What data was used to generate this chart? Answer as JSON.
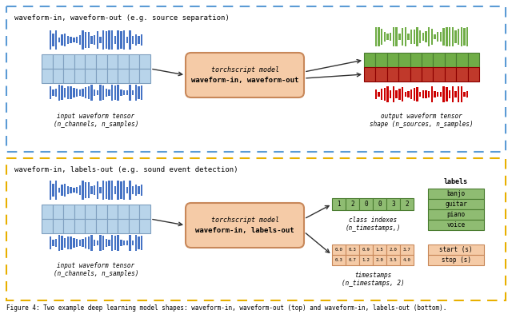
{
  "fig_width": 6.4,
  "fig_height": 3.98,
  "dpi": 100,
  "bg_color": "#ffffff",
  "top_panel": {
    "title": "waveform-in, waveform-out (e.g. source separation)",
    "box_color": "#b8d4ea",
    "box_border": "#7f9fbf",
    "panel_border": "#5b9bd5",
    "model_box_color": "#f5cba7",
    "model_box_border": "#c8885a",
    "model_text1": "torchscript model",
    "model_text2": "waveform-in, waveform-out",
    "input_label1": "input waveform tensor",
    "input_label2": "(n_channels, n_samples)",
    "output_label1": "output waveform tensor",
    "output_label2": "shape (n_sources, n_samples)",
    "wave_color_in": "#4472c4",
    "wave_color_out_top": "#70ad47",
    "wave_color_out_bot": "#cc0000",
    "grid_color_out_top": "#70ad47",
    "grid_color_out_top_border": "#4a7c30",
    "grid_color_out_bot": "#c0392b",
    "grid_color_out_bot_border": "#8b0000"
  },
  "bottom_panel": {
    "title": "waveform-in, labels-out (e.g. sound event detection)",
    "box_color": "#b8d4ea",
    "box_border": "#7f9fbf",
    "panel_border": "#e8b000",
    "model_box_color": "#f5cba7",
    "model_box_border": "#c8885a",
    "model_text1": "torchscript model",
    "model_text2": "waveform-in, labels-out",
    "input_label1": "input waveform tensor",
    "input_label2": "(n_channels, n_samples)",
    "class_indexes": [
      "1",
      "2",
      "0",
      "0",
      "3",
      "2"
    ],
    "class_box_color": "#8fbc72",
    "class_box_border": "#4a7c30",
    "class_label1": "class indexes",
    "class_label2": "(n_timestamps,)",
    "timestamps_top": [
      "0.0",
      "0.3",
      "0.9",
      "1.5",
      "2.0",
      "3.7"
    ],
    "timestamps_bot": [
      "0.3",
      "0.7",
      "1.2",
      "2.0",
      "3.5",
      "4.0"
    ],
    "ts_box_color": "#f5cba7",
    "ts_box_border": "#c8885a",
    "ts_label1": "timestamps",
    "ts_label2": "(n_timestamps, 2)",
    "labels_title": "labels",
    "labels_items": [
      "banjo",
      "guitar",
      "piano",
      "voice"
    ],
    "labels_box_color": "#8fbc72",
    "labels_box_border": "#4a7c30",
    "start_stop": [
      "start (s)",
      "stop (s)"
    ],
    "start_stop_color": "#f5cba7",
    "start_stop_border": "#c8885a"
  }
}
